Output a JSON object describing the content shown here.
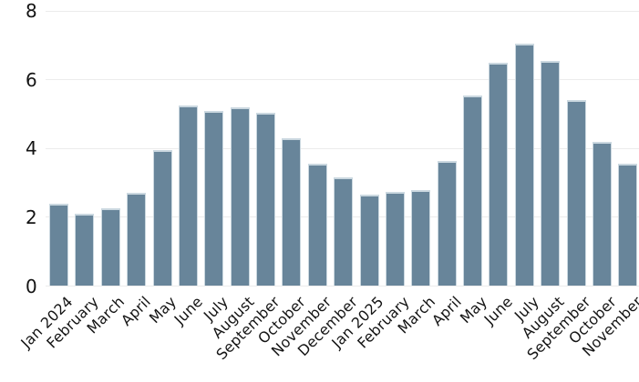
{
  "chart_data": {
    "type": "bar",
    "categories": [
      "Jan 2024",
      "February",
      "March",
      "April",
      "May",
      "June",
      "July",
      "August",
      "September",
      "October",
      "November",
      "December",
      "Jan 2025",
      "February",
      "March",
      "April",
      "May",
      "June",
      "July",
      "August",
      "September",
      "October",
      "November"
    ],
    "values": [
      2.4,
      2.1,
      2.25,
      2.7,
      3.95,
      5.25,
      5.1,
      5.2,
      5.05,
      4.3,
      3.55,
      3.15,
      2.65,
      2.75,
      2.8,
      3.65,
      5.55,
      6.5,
      7.05,
      6.55,
      5.4,
      4.2,
      3.55
    ],
    "title": "",
    "xlabel": "",
    "ylabel": "",
    "ylim": [
      0,
      8
    ],
    "yticks": [
      0,
      2,
      4,
      6,
      8
    ],
    "ytick_labels": [
      "0",
      "2",
      "4",
      "6",
      "8"
    ],
    "grid": "horizontal",
    "legend": false,
    "x_label_rotation_deg": 45,
    "colors": {
      "bar_fill": "#68859A",
      "bar_edge": "#CBD8E0",
      "gridline": "#ECECEC",
      "text": "#141414",
      "background": "#FFFFFF"
    }
  }
}
